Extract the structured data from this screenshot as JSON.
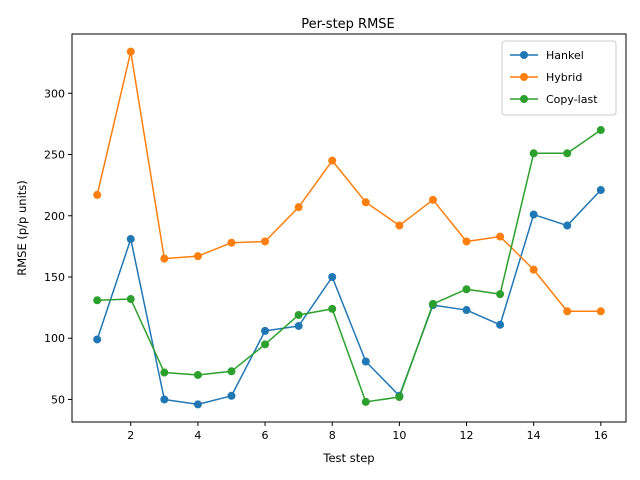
{
  "chart_data": {
    "type": "line",
    "title": "Per-step RMSE",
    "xlabel": "Test step",
    "ylabel": "RMSE (p/p units)",
    "x": [
      1,
      2,
      3,
      4,
      5,
      6,
      7,
      8,
      9,
      10,
      11,
      12,
      13,
      14,
      15,
      16
    ],
    "xticks": [
      2,
      4,
      6,
      8,
      10,
      12,
      14,
      16
    ],
    "yticks": [
      50,
      100,
      150,
      200,
      250,
      300
    ],
    "xlim": [
      0.25,
      16.75
    ],
    "ylim": [
      31.6,
      348.4
    ],
    "grid": false,
    "legend_position": "top-right",
    "series": [
      {
        "name": "Hankel",
        "color": "#1f77b4",
        "values": [
          99,
          181,
          50,
          46,
          53,
          106,
          110,
          150,
          81,
          53,
          127,
          123,
          111,
          201,
          192,
          221
        ]
      },
      {
        "name": "Hybrid",
        "color": "#ff7f0e",
        "values": [
          217,
          334,
          165,
          167,
          178,
          179,
          207,
          245,
          211,
          192,
          213,
          179,
          183,
          156,
          122,
          122
        ]
      },
      {
        "name": "Copy-last",
        "color": "#2ca02c",
        "values": [
          131,
          132,
          72,
          70,
          73,
          95,
          119,
          124,
          48,
          52,
          128,
          140,
          136,
          251,
          251,
          270
        ]
      }
    ]
  }
}
